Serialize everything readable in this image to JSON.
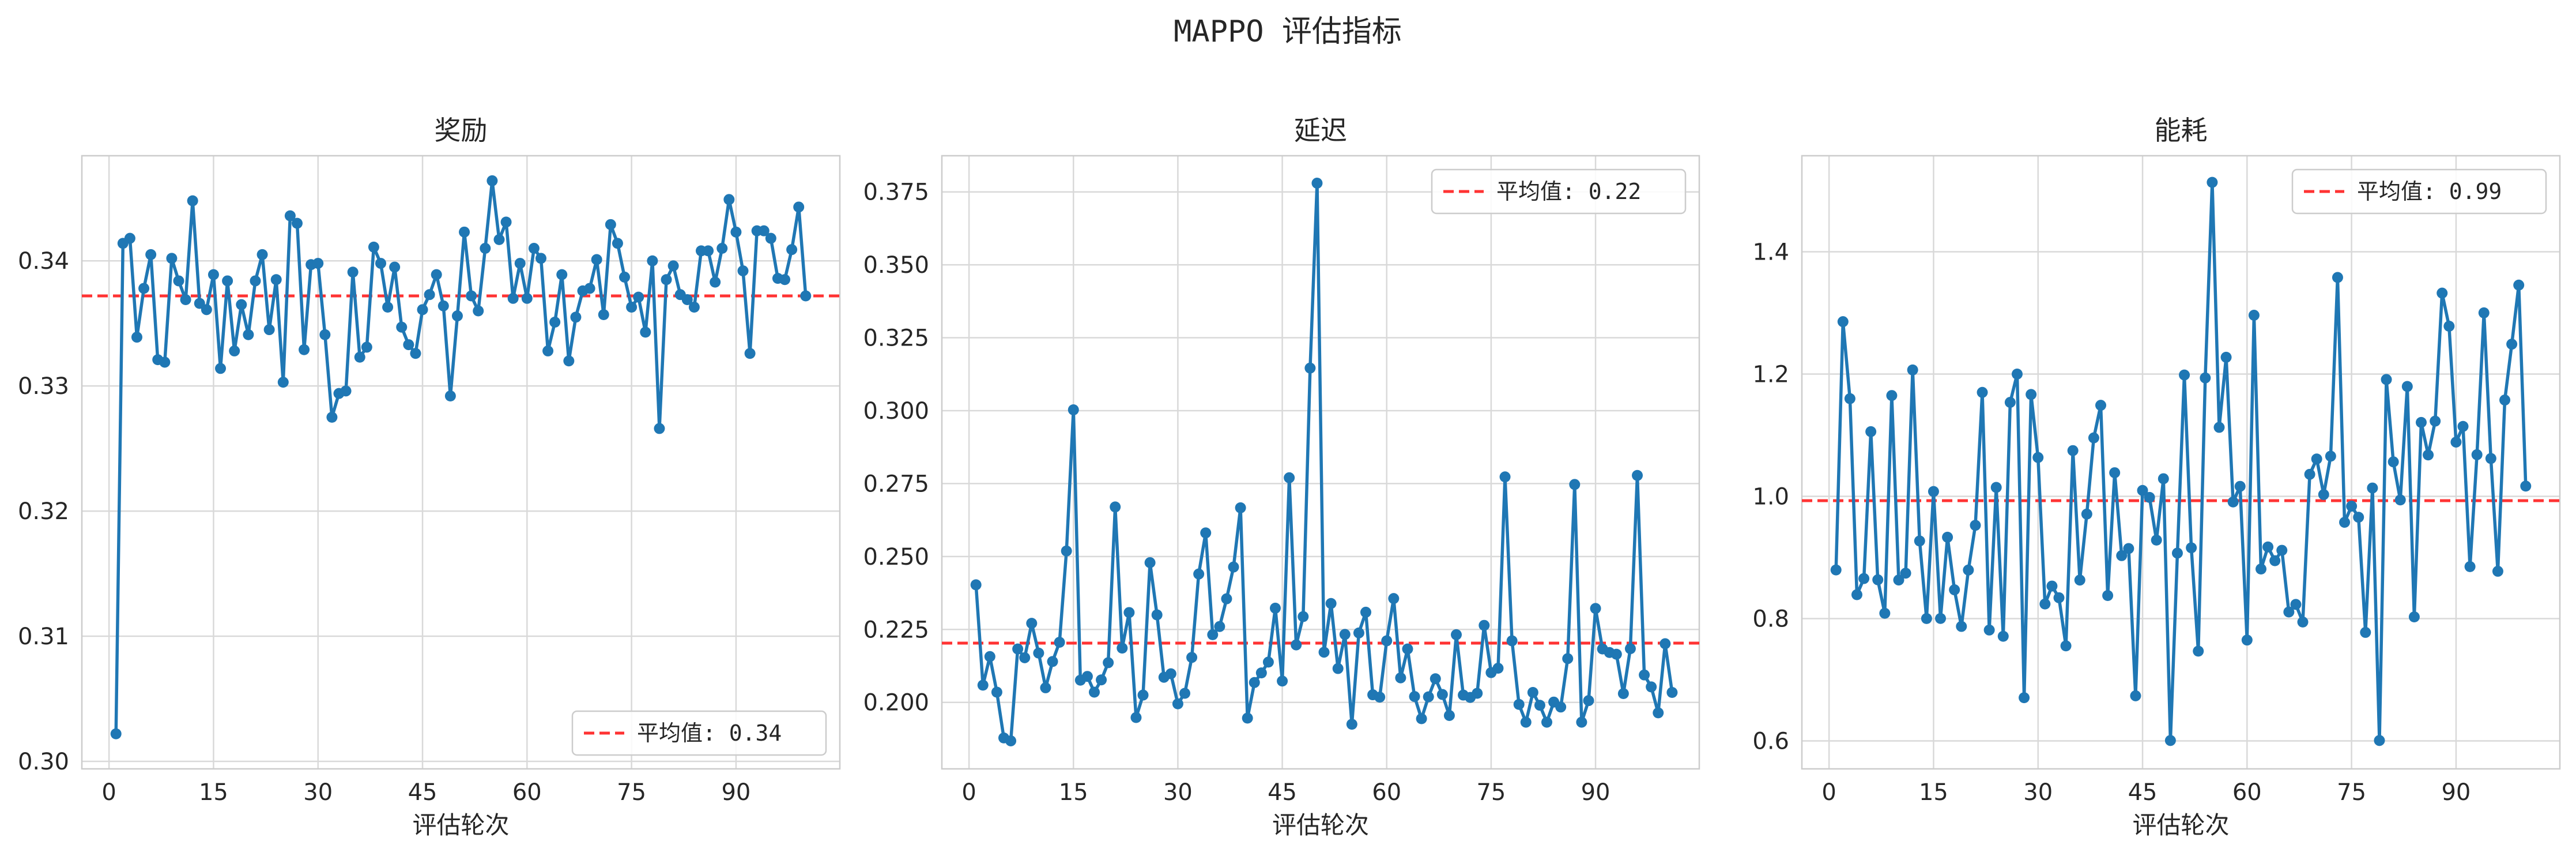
{
  "suptitle": "MAPPO 评估指标",
  "chart_data": [
    {
      "type": "line",
      "title": "奖励",
      "xlabel": "评估轮次",
      "ylabel": "",
      "xlim": [
        -3.9,
        104.9
      ],
      "ylim": [
        0.2994,
        0.3484
      ],
      "xticks": [
        0,
        15,
        30,
        45,
        60,
        75,
        90
      ],
      "yticks": [
        0.3,
        0.31,
        0.32,
        0.33,
        0.34
      ],
      "ytick_labels": [
        "0.30",
        "0.31",
        "0.32",
        "0.33",
        "0.34"
      ],
      "grid": true,
      "legend_position": "lower right",
      "color": "#1f77b4",
      "mean_line": {
        "label": "平均值: 0.34",
        "value": 0.3372,
        "color": "#ff3333"
      },
      "x_start": 1,
      "values": [
        0.3022,
        0.3414,
        0.3418,
        0.3339,
        0.3378,
        0.3405,
        0.3321,
        0.3319,
        0.3402,
        0.3384,
        0.3369,
        0.3448,
        0.3366,
        0.3361,
        0.3389,
        0.3314,
        0.3384,
        0.3328,
        0.3365,
        0.3341,
        0.3384,
        0.3405,
        0.3345,
        0.3385,
        0.3303,
        0.3436,
        0.343,
        0.3329,
        0.3397,
        0.3398,
        0.3341,
        0.3275,
        0.3294,
        0.3296,
        0.3391,
        0.3323,
        0.3331,
        0.3411,
        0.3398,
        0.3363,
        0.3395,
        0.3347,
        0.3333,
        0.3326,
        0.3361,
        0.3373,
        0.3389,
        0.3364,
        0.3292,
        0.3356,
        0.3423,
        0.3372,
        0.336,
        0.341,
        0.3464,
        0.3417,
        0.3431,
        0.337,
        0.3398,
        0.337,
        0.341,
        0.3402,
        0.3328,
        0.3351,
        0.3389,
        0.332,
        0.3355,
        0.3376,
        0.3378,
        0.3401,
        0.3357,
        0.3429,
        0.3414,
        0.3387,
        0.3363,
        0.3371,
        0.3343,
        0.34,
        0.3266,
        0.3385,
        0.3396,
        0.3373,
        0.3369,
        0.3363,
        0.3408,
        0.3408,
        0.3383,
        0.341,
        0.3449,
        0.3423,
        0.3392,
        0.3326,
        0.3424,
        0.3424,
        0.3418,
        0.3386,
        0.3385,
        0.3409,
        0.3443,
        0.3372
      ]
    },
    {
      "type": "line",
      "title": "延迟",
      "xlabel": "评估轮次",
      "ylabel": "",
      "xlim": [
        -3.9,
        104.9
      ],
      "ylim": [
        0.1772,
        0.3874
      ],
      "xticks": [
        0,
        15,
        30,
        45,
        60,
        75,
        90
      ],
      "yticks": [
        0.2,
        0.225,
        0.25,
        0.275,
        0.3,
        0.325,
        0.35,
        0.375
      ],
      "ytick_labels": [
        "0.200",
        "0.225",
        "0.250",
        "0.275",
        "0.300",
        "0.325",
        "0.350",
        "0.375"
      ],
      "grid": true,
      "legend_position": "upper right",
      "color": "#1f77b4",
      "mean_line": {
        "label": "平均值: 0.22",
        "value": 0.2203,
        "color": "#ff3333"
      },
      "x_start": 1,
      "values": [
        0.2403,
        0.2059,
        0.2157,
        0.2035,
        0.1878,
        0.1868,
        0.2183,
        0.2153,
        0.2271,
        0.2169,
        0.205,
        0.214,
        0.2206,
        0.2519,
        0.3003,
        0.2076,
        0.2089,
        0.2035,
        0.2077,
        0.2136,
        0.267,
        0.2186,
        0.2308,
        0.1948,
        0.2025,
        0.2479,
        0.23,
        0.2086,
        0.2098,
        0.1995,
        0.2031,
        0.2154,
        0.244,
        0.2581,
        0.2232,
        0.226,
        0.2355,
        0.2464,
        0.2667,
        0.1946,
        0.2068,
        0.2101,
        0.2138,
        0.2323,
        0.2073,
        0.277,
        0.2197,
        0.2294,
        0.3146,
        0.378,
        0.2172,
        0.2339,
        0.2116,
        0.2233,
        0.1925,
        0.2238,
        0.2309,
        0.2026,
        0.2018,
        0.2211,
        0.2356,
        0.2084,
        0.2183,
        0.202,
        0.1944,
        0.2019,
        0.2081,
        0.2027,
        0.1955,
        0.2232,
        0.2025,
        0.2017,
        0.2031,
        0.2264,
        0.2102,
        0.2117,
        0.2773,
        0.2211,
        0.1993,
        0.1932,
        0.2034,
        0.199,
        0.1932,
        0.2001,
        0.1984,
        0.215,
        0.2747,
        0.1932,
        0.2006,
        0.2322,
        0.2183,
        0.2171,
        0.2165,
        0.203,
        0.2184,
        0.2778,
        0.2094,
        0.2053,
        0.1964,
        0.2201,
        0.2034
      ]
    },
    {
      "type": "line",
      "title": "能耗",
      "xlabel": "评估轮次",
      "ylabel": "",
      "xlim": [
        -3.9,
        104.9
      ],
      "ylim": [
        0.5542,
        1.5571
      ],
      "xticks": [
        0,
        15,
        30,
        45,
        60,
        75,
        90
      ],
      "yticks": [
        0.6,
        0.8,
        1.0,
        1.2,
        1.4
      ],
      "ytick_labels": [
        "0.6",
        "0.8",
        "1.0",
        "1.2",
        "1.4"
      ],
      "grid": true,
      "legend_position": "upper right",
      "color": "#1f77b4",
      "mean_line": {
        "label": "平均值: 0.99",
        "value": 0.9929,
        "color": "#ff3333"
      },
      "x_start": 1,
      "values": [
        0.8796,
        1.2857,
        1.1598,
        0.8391,
        0.8655,
        1.1058,
        0.8635,
        0.8087,
        1.1649,
        0.8631,
        0.8743,
        1.2067,
        0.927,
        0.8001,
        1.0079,
        0.8002,
        0.9331,
        0.8471,
        0.7872,
        0.8794,
        0.9526,
        1.17,
        0.7813,
        1.0146,
        0.7711,
        1.1537,
        1.2,
        0.6706,
        1.1666,
        1.0635,
        0.8239,
        0.8532,
        0.8341,
        0.7554,
        1.0748,
        0.863,
        0.971,
        1.0956,
        1.1489,
        0.8377,
        1.0386,
        0.903,
        0.9146,
        0.6737,
        1.0096,
        0.9982,
        0.9284,
        1.0288,
        0.6006,
        0.9071,
        1.1985,
        0.9158,
        0.7468,
        1.1937,
        1.5136,
        1.1128,
        1.2275,
        0.9908,
        1.0163,
        0.7649,
        1.2962,
        0.8811,
        0.9172,
        0.8947,
        0.9117,
        0.8108,
        0.8232,
        0.7944,
        1.036,
        1.0611,
        1.0029,
        1.0657,
        1.358,
        0.9575,
        0.9839,
        0.9658,
        0.7774,
        1.0136,
        0.6006,
        1.1911,
        1.0564,
        0.9941,
        1.1797,
        0.8028,
        1.1209,
        1.0677,
        1.123,
        1.3324,
        1.2783,
        1.0887,
        1.1144,
        0.885,
        1.0681,
        1.3001,
        1.0619,
        0.8774,
        1.1575,
        1.2489,
        1.3455,
        1.0167
      ]
    }
  ]
}
